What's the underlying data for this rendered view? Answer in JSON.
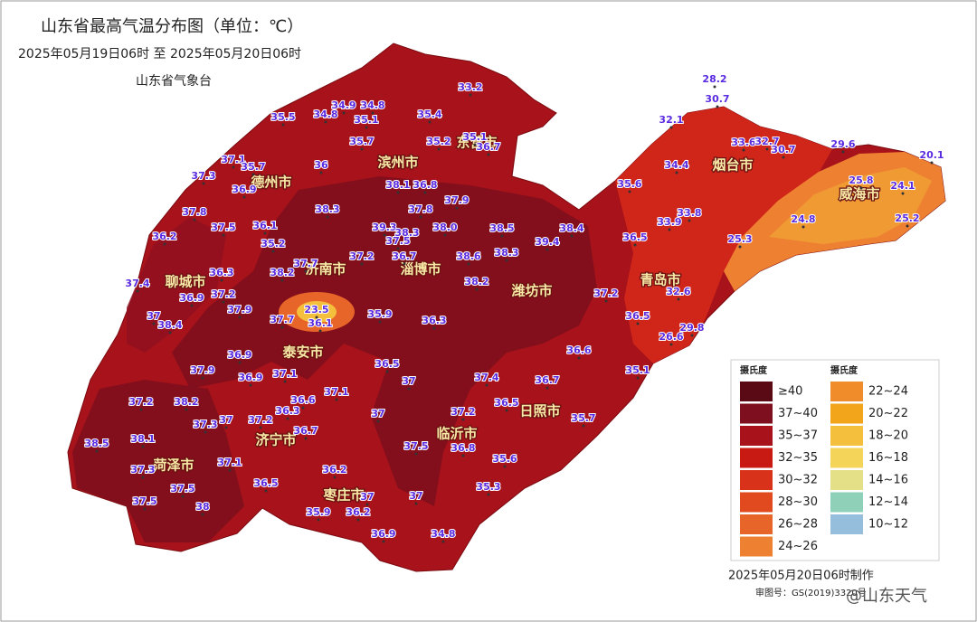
{
  "header": {
    "title": "山东省最高气温分布图（单位：℃）",
    "period": "2025年05月19日06时  至  2025年05月20日06时",
    "agency": "山东省气象台"
  },
  "cities": [
    "东营市",
    "滨州市",
    "德州市",
    "烟台市",
    "威海市",
    "聊城市",
    "济南市",
    "淄博市",
    "潍坊市",
    "青岛市",
    "泰安市",
    "日照市",
    "临沂市",
    "济宁市",
    "菏泽市",
    "枣庄市"
  ],
  "stations": [
    "33.2",
    "34.9",
    "34.8",
    "34.8",
    "35.4",
    "35.5",
    "35.1",
    "35.1",
    "35.7",
    "35.2",
    "36.7",
    "37.1",
    "35.7",
    "36",
    "37.3",
    "36.9",
    "38.1",
    "36.8",
    "37.9",
    "38.3",
    "37.8",
    "37.8",
    "39.3",
    "38.3",
    "38.0",
    "38.5",
    "38.4",
    "37.5",
    "36.1",
    "36.2",
    "37.5",
    "39.4",
    "35.2",
    "36.5",
    "38.3",
    "38.6",
    "37.2",
    "36.7",
    "37.7",
    "36.3",
    "38.2",
    "37.4",
    "38.2",
    "37.2",
    "36.9",
    "37.2",
    "32.6",
    "37.9",
    "23.5",
    "37",
    "38.4",
    "37.7",
    "36.1",
    "35.9",
    "36.3",
    "36.5",
    "29.8",
    "26.6",
    "36.9",
    "36.6",
    "36.5",
    "37.9",
    "36.9",
    "37.1",
    "35.1",
    "37.4",
    "36.7",
    "37",
    "36.6",
    "37.1",
    "37.2",
    "38.2",
    "36.3",
    "37",
    "37.2",
    "36.5",
    "37.3",
    "37",
    "37.2",
    "36.7",
    "35.7",
    "38.5",
    "38.1",
    "37.5",
    "36.8",
    "37.1",
    "35.6",
    "37.3",
    "36.2",
    "36.5",
    "35.3",
    "37.5",
    "37",
    "37.5",
    "38",
    "37",
    "35.9",
    "36.2",
    "36.9",
    "34.8",
    "28.2",
    "30.7",
    "32.1",
    "33.6",
    "32.7",
    "30.7",
    "29.6",
    "20.1",
    "34.4",
    "35.6",
    "25.8",
    "24.1",
    "33.8",
    "33.9",
    "25.2",
    "24.8",
    "25.3"
  ],
  "legend": {
    "columns": [
      {
        "unit": "摄氏度",
        "items": [
          {
            "label": "≥40",
            "color": "#5a0a14"
          },
          {
            "label": "37~40",
            "color": "#7e0f1e"
          },
          {
            "label": "35~37",
            "color": "#a8121a"
          },
          {
            "label": "32~35",
            "color": "#c81a12"
          },
          {
            "label": "30~32",
            "color": "#d8321a"
          },
          {
            "label": "28~30",
            "color": "#e04a1e"
          },
          {
            "label": "26~28",
            "color": "#e8652a"
          },
          {
            "label": "24~26",
            "color": "#ee8032"
          }
        ]
      },
      {
        "unit": "摄氏度",
        "items": [
          {
            "label": "22~24",
            "color": "#f08c2a"
          },
          {
            "label": "20~22",
            "color": "#f2a41a"
          },
          {
            "label": "18~20",
            "color": "#f5bf3e"
          },
          {
            "label": "16~18",
            "color": "#f5d45a"
          },
          {
            "label": "14~16",
            "color": "#e4e088"
          },
          {
            "label": "12~14",
            "color": "#8fd1b8"
          },
          {
            "label": "10~12",
            "color": "#94bedb"
          }
        ]
      }
    ]
  },
  "footer": {
    "made": "2025年05月20日06时制作",
    "approval": "审图号：GS(2019)3320号",
    "watermark": "@山东天气"
  }
}
